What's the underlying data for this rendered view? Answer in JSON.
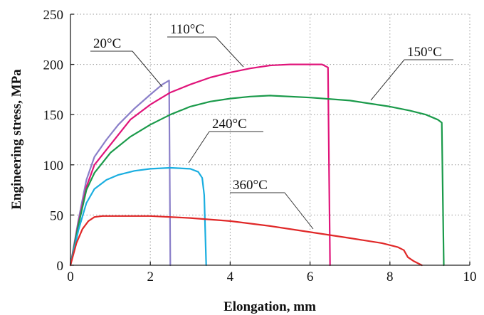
{
  "chart_data": {
    "type": "line",
    "xlabel": "Elongation, mm",
    "ylabel": "Engineering stress, MPa",
    "xlim": [
      0,
      10
    ],
    "ylim": [
      0,
      250
    ],
    "xticks": [
      0,
      2,
      4,
      6,
      8,
      10
    ],
    "yticks": [
      0,
      50,
      100,
      150,
      200,
      250
    ],
    "grid": true,
    "series": [
      {
        "name": "20°C",
        "color": "#8a7fc9",
        "points": [
          [
            0,
            0
          ],
          [
            0.2,
            45
          ],
          [
            0.4,
            85
          ],
          [
            0.6,
            108
          ],
          [
            0.9,
            125
          ],
          [
            1.2,
            140
          ],
          [
            1.6,
            156
          ],
          [
            2.0,
            170
          ],
          [
            2.3,
            180
          ],
          [
            2.47,
            184
          ],
          [
            2.5,
            0
          ]
        ]
      },
      {
        "name": "110°C",
        "color": "#e0147a",
        "points": [
          [
            0,
            0
          ],
          [
            0.2,
            42
          ],
          [
            0.4,
            78
          ],
          [
            0.6,
            100
          ],
          [
            1.0,
            120
          ],
          [
            1.5,
            145
          ],
          [
            2.0,
            160
          ],
          [
            2.5,
            172
          ],
          [
            3.0,
            180
          ],
          [
            3.5,
            187
          ],
          [
            4.0,
            192
          ],
          [
            4.5,
            196
          ],
          [
            5.0,
            199
          ],
          [
            5.5,
            200
          ],
          [
            6.0,
            200
          ],
          [
            6.3,
            200
          ],
          [
            6.45,
            197
          ],
          [
            6.5,
            0
          ]
        ]
      },
      {
        "name": "150°C",
        "color": "#1a9a4a",
        "points": [
          [
            0,
            0
          ],
          [
            0.2,
            40
          ],
          [
            0.4,
            75
          ],
          [
            0.6,
            92
          ],
          [
            1.0,
            112
          ],
          [
            1.5,
            128
          ],
          [
            2.0,
            140
          ],
          [
            2.5,
            150
          ],
          [
            3.0,
            158
          ],
          [
            3.5,
            163
          ],
          [
            4.0,
            166
          ],
          [
            4.5,
            168
          ],
          [
            5.0,
            169
          ],
          [
            6.0,
            167
          ],
          [
            7.0,
            164
          ],
          [
            8.0,
            158
          ],
          [
            8.5,
            154
          ],
          [
            8.9,
            150
          ],
          [
            9.2,
            145
          ],
          [
            9.3,
            142
          ],
          [
            9.35,
            0
          ]
        ]
      },
      {
        "name": "240°C",
        "color": "#1aaee0",
        "points": [
          [
            0,
            0
          ],
          [
            0.2,
            35
          ],
          [
            0.4,
            62
          ],
          [
            0.6,
            76
          ],
          [
            0.9,
            85
          ],
          [
            1.2,
            90
          ],
          [
            1.6,
            94
          ],
          [
            2.0,
            96
          ],
          [
            2.5,
            97
          ],
          [
            3.0,
            96
          ],
          [
            3.2,
            93
          ],
          [
            3.3,
            87
          ],
          [
            3.35,
            70
          ],
          [
            3.4,
            0
          ]
        ]
      },
      {
        "name": "360°C",
        "color": "#e02828",
        "points": [
          [
            0,
            0
          ],
          [
            0.15,
            22
          ],
          [
            0.3,
            36
          ],
          [
            0.45,
            44
          ],
          [
            0.6,
            48
          ],
          [
            0.8,
            49
          ],
          [
            1.5,
            49
          ],
          [
            2.0,
            49
          ],
          [
            3.0,
            47
          ],
          [
            4.0,
            44
          ],
          [
            5.0,
            39
          ],
          [
            6.0,
            33
          ],
          [
            7.0,
            27
          ],
          [
            7.8,
            22
          ],
          [
            8.2,
            18
          ],
          [
            8.35,
            15
          ],
          [
            8.45,
            8
          ],
          [
            8.6,
            4
          ],
          [
            8.8,
            0
          ]
        ]
      }
    ],
    "labels": [
      {
        "text": "20°C",
        "series": "20°C"
      },
      {
        "text": "110°C",
        "series": "110°C"
      },
      {
        "text": "150°C",
        "series": "150°C"
      },
      {
        "text": "240°C",
        "series": "240°C"
      },
      {
        "text": "360°C",
        "series": "360°C"
      }
    ]
  }
}
